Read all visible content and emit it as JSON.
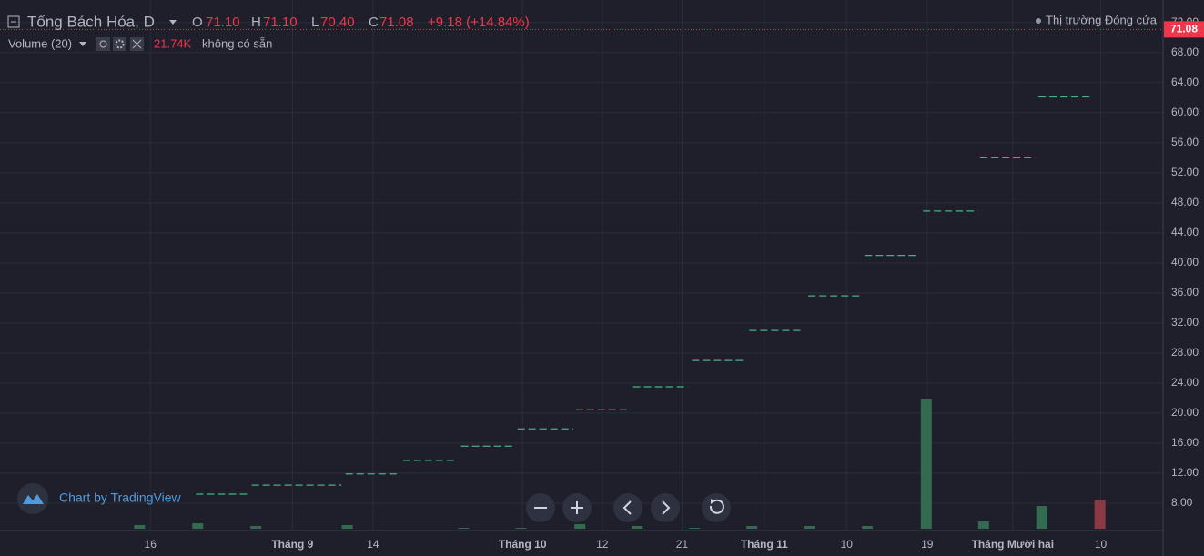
{
  "header": {
    "symbol": "Tổng Bách Hóa, D",
    "open_label": "O",
    "open": "71.10",
    "high_label": "H",
    "high": "71.10",
    "low_label": "L",
    "low": "70.40",
    "close_label": "C",
    "close": "71.08",
    "change": "+9.18 (+14.84%)",
    "market_status": "Thị trường Đóng cửa"
  },
  "volume_legend": {
    "label": "Volume (20)",
    "value": "21.74K",
    "note": "không có sẵn"
  },
  "watermark": "Chart by TradingView",
  "chart_data": {
    "type": "step",
    "xlim": [
      0,
      140
    ],
    "xticks": [
      {
        "value": 18.1,
        "label": "16"
      },
      {
        "value": 35.2,
        "label": "Tháng 9"
      },
      {
        "value": 44.9,
        "label": "14"
      },
      {
        "value": 62.9,
        "label": "Tháng 10"
      },
      {
        "value": 72.5,
        "label": "12"
      },
      {
        "value": 82.1,
        "label": "21"
      },
      {
        "value": 92.0,
        "label": "Tháng 11"
      },
      {
        "value": 101.9,
        "label": "10"
      },
      {
        "value": 111.6,
        "label": "19"
      },
      {
        "value": 121.9,
        "label": "Tháng Mười hai"
      },
      {
        "value": 132.5,
        "label": "10"
      }
    ],
    "ylim": [
      4.6,
      75.0
    ],
    "yticks": [
      {
        "value": 8,
        "label": "8.00"
      },
      {
        "value": 12,
        "label": "12.00"
      },
      {
        "value": 16,
        "label": "16.00"
      },
      {
        "value": 20,
        "label": "20.00"
      },
      {
        "value": 24,
        "label": "24.00"
      },
      {
        "value": 28,
        "label": "28.00"
      },
      {
        "value": 32,
        "label": "32.00"
      },
      {
        "value": 36,
        "label": "36.00"
      },
      {
        "value": 40,
        "label": "40.00"
      },
      {
        "value": 44,
        "label": "44.00"
      },
      {
        "value": 48,
        "label": "48.00"
      },
      {
        "value": 52,
        "label": "52.00"
      },
      {
        "value": 56,
        "label": "56.00"
      },
      {
        "value": 60,
        "label": "60.00"
      },
      {
        "value": 64,
        "label": "64.00"
      },
      {
        "value": 68,
        "label": "68.00"
      },
      {
        "value": 72,
        "label": "72.00"
      }
    ],
    "grid": true,
    "last_price": 71.08,
    "last_price_color": "#f0364a",
    "levels": {
      "color": "#4caf83",
      "x_start": [
        23.6,
        30.3,
        41.6,
        48.5,
        55.5,
        62.3,
        69.3,
        76.2,
        83.3,
        90.2,
        97.3,
        104.1,
        111.1,
        118.0,
        125.0
      ],
      "x_end": [
        29.8,
        41.1,
        48.0,
        55.0,
        61.9,
        69.0,
        75.9,
        82.8,
        89.8,
        96.7,
        103.7,
        110.6,
        117.7,
        124.6,
        131.5
      ],
      "values": [
        9.2,
        10.4,
        11.9,
        13.7,
        15.6,
        17.9,
        20.5,
        23.5,
        27.0,
        31.0,
        35.6,
        41.0,
        46.9,
        54.0,
        62.1
      ]
    },
    "volume": {
      "ylim": [
        0,
        120000
      ],
      "x": [
        16.8,
        23.8,
        30.8,
        41.8,
        55.8,
        62.7,
        69.8,
        76.7,
        83.6,
        90.5,
        97.5,
        104.4,
        111.5,
        118.4,
        125.4,
        132.4
      ],
      "values": [
        2800,
        4200,
        2100,
        2800,
        700,
        700,
        3500,
        2100,
        700,
        2100,
        2100,
        2100,
        100000,
        5600,
        17500,
        21740
      ],
      "colors": [
        "#336b4f",
        "#336b4f",
        "#336b4f",
        "#336b4f",
        "#336b4f",
        "#336b4f",
        "#336b4f",
        "#336b4f",
        "#336b4f",
        "#336b4f",
        "#336b4f",
        "#336b4f",
        "#336b4f",
        "#336b4f",
        "#336b4f",
        "#8b3a44"
      ]
    }
  }
}
